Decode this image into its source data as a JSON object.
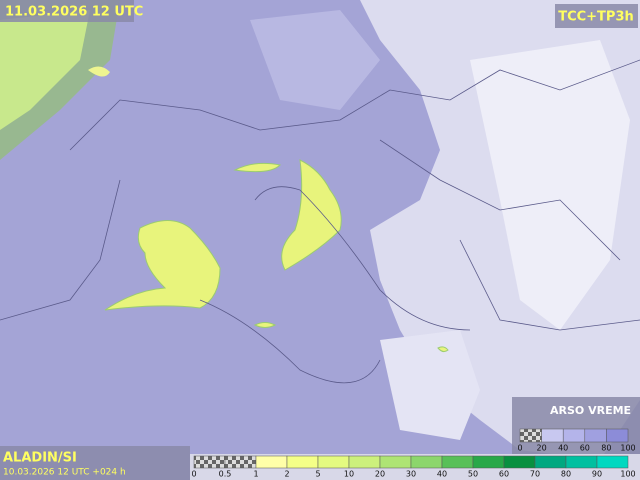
{
  "header": {
    "valid_time": "11.03.2026 12 UTC",
    "product": "TCC+TP3h"
  },
  "footer": {
    "model": "ALADIN/SI",
    "run": "10.03.2026 12 UTC +024 h"
  },
  "brand": {
    "name": "ARSO VREME"
  },
  "cloud_legend": {
    "labels": [
      "0",
      "20",
      "40",
      "60",
      "80",
      "100"
    ],
    "colors": [
      "checker",
      "#c8c8f0",
      "#b4b4ea",
      "#a0a0e0",
      "#8c8cd8"
    ]
  },
  "precip_legend": {
    "labels": [
      "0",
      "0.5",
      "1",
      "2",
      "5",
      "10",
      "20",
      "30",
      "40",
      "50",
      "60",
      "70",
      "80",
      "90",
      "100"
    ],
    "colors": [
      "checker",
      "checker",
      "#ffffa8",
      "#f4ff88",
      "#e4fa80",
      "#ccf07c",
      "#aee474",
      "#8cd66c",
      "#58c058",
      "#28a848",
      "#089040",
      "#00a880",
      "#00c0a0",
      "#00d8c0"
    ]
  }
}
